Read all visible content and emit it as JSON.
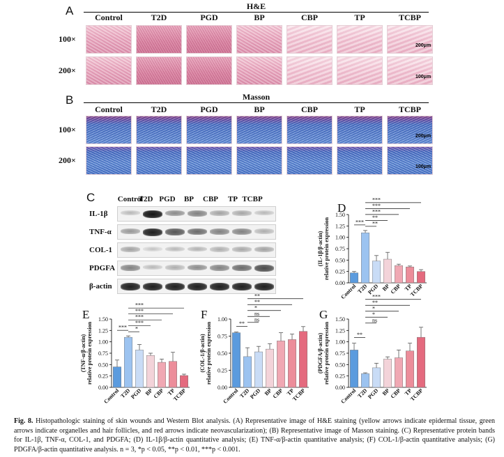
{
  "panels": {
    "a": {
      "letter": "A",
      "title": "H&E",
      "scale_100": "200μm",
      "scale_200": "100μm"
    },
    "b": {
      "letter": "B",
      "title": "Masson",
      "scale_100": "200μm",
      "scale_200": "100μm"
    },
    "c": {
      "letter": "C"
    }
  },
  "groups": [
    "Control",
    "T2D",
    "PGD",
    "BP",
    "CBP",
    "TP",
    "TCBP"
  ],
  "magnifications": [
    "100×",
    "200×"
  ],
  "blot": {
    "proteins": [
      "IL-1β",
      "TNF-α",
      "COL-1",
      "PDGFA",
      "β-actin"
    ],
    "intensity": {
      "IL-1β": [
        0.25,
        1.0,
        0.45,
        0.5,
        0.35,
        0.33,
        0.25
      ],
      "TNF-α": [
        0.4,
        0.95,
        0.7,
        0.6,
        0.5,
        0.5,
        0.3
      ],
      "COL-1": [
        0.35,
        0.2,
        0.25,
        0.28,
        0.3,
        0.32,
        0.35
      ],
      "PDGFA": [
        0.5,
        0.25,
        0.3,
        0.45,
        0.5,
        0.6,
        0.75
      ],
      "β-actin": [
        0.95,
        0.95,
        0.95,
        0.95,
        0.95,
        0.95,
        0.95
      ]
    }
  },
  "chart_data": [
    {
      "type": "bar",
      "panel": "D",
      "ylabel": "(IL-1β/β-actin) relative protein expression",
      "categories": [
        "Control",
        "T2D",
        "PGD",
        "BP",
        "CBP",
        "TP",
        "TCBP"
      ],
      "values": [
        0.22,
        1.1,
        0.48,
        0.52,
        0.38,
        0.35,
        0.25
      ],
      "errors": [
        0.03,
        0.05,
        0.12,
        0.15,
        0.03,
        0.02,
        0.04
      ],
      "ylim": [
        0,
        1.5
      ],
      "yticks": [
        "0.00",
        "0.25",
        "0.50",
        "0.75",
        "1.00",
        "1.25",
        "1.50"
      ],
      "significance": [
        {
          "from": 0,
          "to": 1,
          "label": "***"
        },
        {
          "from": 1,
          "to": 2,
          "label": "**"
        },
        {
          "from": 1,
          "to": 3,
          "label": "**"
        },
        {
          "from": 1,
          "to": 4,
          "label": "***"
        },
        {
          "from": 1,
          "to": 5,
          "label": "***"
        },
        {
          "from": 1,
          "to": 6,
          "label": "***"
        }
      ]
    },
    {
      "type": "bar",
      "panel": "E",
      "ylabel": "(TNF-α/β-actin) relative protein expression",
      "categories": [
        "Control",
        "T2D",
        "PGD",
        "BP",
        "CBP",
        "TP",
        "TCBP"
      ],
      "values": [
        0.45,
        1.1,
        0.82,
        0.7,
        0.55,
        0.57,
        0.26
      ],
      "errors": [
        0.15,
        0.03,
        0.12,
        0.05,
        0.07,
        0.2,
        0.03
      ],
      "ylim": [
        0,
        1.5
      ],
      "yticks": [
        "0.00",
        "0.25",
        "0.50",
        "0.75",
        "1.00",
        "1.25",
        "1.50"
      ],
      "significance": [
        {
          "from": 0,
          "to": 1,
          "label": "***"
        },
        {
          "from": 1,
          "to": 2,
          "label": "*"
        },
        {
          "from": 1,
          "to": 3,
          "label": "***"
        },
        {
          "from": 1,
          "to": 4,
          "label": "***"
        },
        {
          "from": 1,
          "to": 5,
          "label": "***"
        },
        {
          "from": 1,
          "to": 6,
          "label": "***"
        }
      ]
    },
    {
      "type": "bar",
      "panel": "F",
      "ylabel": "(COL-1/β-actin) relative protein expression",
      "categories": [
        "Control",
        "T2D",
        "PGD",
        "BP",
        "CBP",
        "TP",
        "TCBP"
      ],
      "values": [
        0.8,
        0.45,
        0.52,
        0.56,
        0.68,
        0.7,
        0.82
      ],
      "errors": [
        0.01,
        0.13,
        0.08,
        0.08,
        0.12,
        0.08,
        0.07
      ],
      "ylim": [
        0,
        1.0
      ],
      "yticks": [
        "0.00",
        "0.25",
        "0.50",
        "0.75",
        "1.00"
      ],
      "significance": [
        {
          "from": 0,
          "to": 1,
          "label": "**"
        },
        {
          "from": 1,
          "to": 2,
          "label": "ns"
        },
        {
          "from": 1,
          "to": 3,
          "label": "ns"
        },
        {
          "from": 1,
          "to": 4,
          "label": "*"
        },
        {
          "from": 1,
          "to": 5,
          "label": "**"
        },
        {
          "from": 1,
          "to": 6,
          "label": "**"
        }
      ]
    },
    {
      "type": "bar",
      "panel": "G",
      "ylabel": "(PDGFA/β-actin) relative protein expression",
      "categories": [
        "Control",
        "T2D",
        "PGD",
        "BP",
        "CBP",
        "TP",
        "TCBP"
      ],
      "values": [
        0.82,
        0.3,
        0.43,
        0.62,
        0.65,
        0.8,
        1.1
      ],
      "errors": [
        0.15,
        0.02,
        0.1,
        0.05,
        0.17,
        0.17,
        0.22
      ],
      "ylim": [
        0,
        1.5
      ],
      "yticks": [
        "0.00",
        "0.25",
        "0.50",
        "0.75",
        "1.00",
        "1.25",
        "1.50"
      ],
      "significance": [
        {
          "from": 0,
          "to": 1,
          "label": "**"
        },
        {
          "from": 1,
          "to": 2,
          "label": "ns"
        },
        {
          "from": 1,
          "to": 3,
          "label": "*"
        },
        {
          "from": 1,
          "to": 4,
          "label": "*"
        },
        {
          "from": 1,
          "to": 5,
          "label": "**"
        },
        {
          "from": 1,
          "to": 6,
          "label": "***"
        }
      ]
    }
  ],
  "bar_colors": [
    "#5b9bde",
    "#9cc3f0",
    "#c9dcf6",
    "#f3d3d9",
    "#f0a8b3",
    "#ec8d9a",
    "#e46a7e"
  ],
  "caption": {
    "label": "Fig. 8.",
    "text": "Histopathologic staining of skin wounds and Western Blot analysis. (A) Representative image of H&E staining (yellow arrows indicate epidermal tissue, green arrows indicate organelles and hair follicles, and red arrows indicate neovascularization); (B) Representative image of Masson staining. (C) Representative protein bands for IL-1β, TNF-α, COL-1, and PDGFA; (D) IL-1β/β-actin quantitative analysis; (E) TNF-α/β-actin quantitative analysis; (F) COL-1/β-actin quantitative analysis; (G) PDGFA/β-actin quantitative analysis. n = 3, *p < 0.05, **p < 0.01, ***p < 0.001."
  }
}
